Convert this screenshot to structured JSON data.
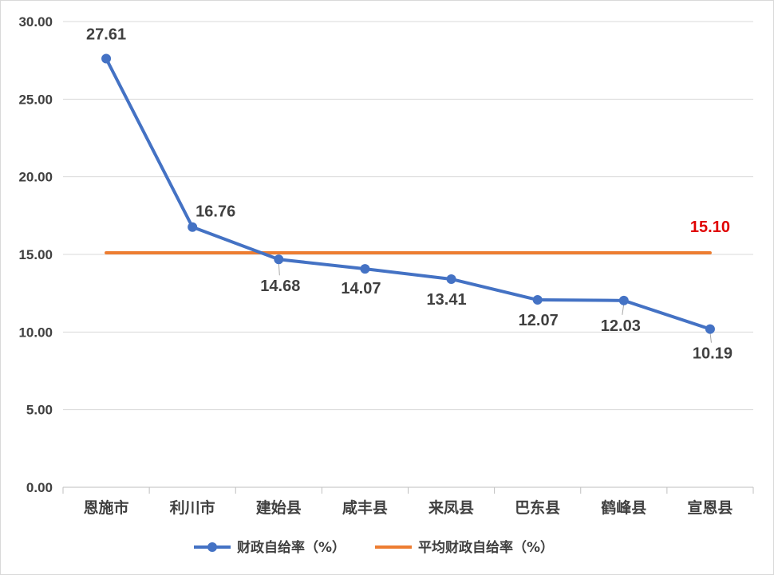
{
  "chart_data": {
    "type": "line",
    "categories": [
      "恩施市",
      "利川市",
      "建始县",
      "咸丰县",
      "来凤县",
      "巴东县",
      "鹤峰县",
      "宣恩县"
    ],
    "series": [
      {
        "name": "财政自给率（%）",
        "values": [
          27.61,
          16.76,
          14.68,
          14.07,
          13.41,
          12.07,
          12.03,
          10.19
        ],
        "color": "#4472c4",
        "labels": [
          "27.61",
          "16.76",
          "14.68",
          "14.07",
          "13.41",
          "12.07",
          "12.03",
          "10.19"
        ]
      },
      {
        "name": "平均财政自给率（%）",
        "values": [
          15.1,
          15.1,
          15.1,
          15.1,
          15.1,
          15.1,
          15.1,
          15.1
        ],
        "color": "#ed7d31",
        "label": "15.10",
        "label_color": "#e00000"
      }
    ],
    "ylim": [
      0,
      30
    ],
    "yticks": [
      "0.00",
      "5.00",
      "10.00",
      "15.00",
      "20.00",
      "25.00",
      "30.00"
    ],
    "grid": true,
    "legend": "bottom"
  }
}
